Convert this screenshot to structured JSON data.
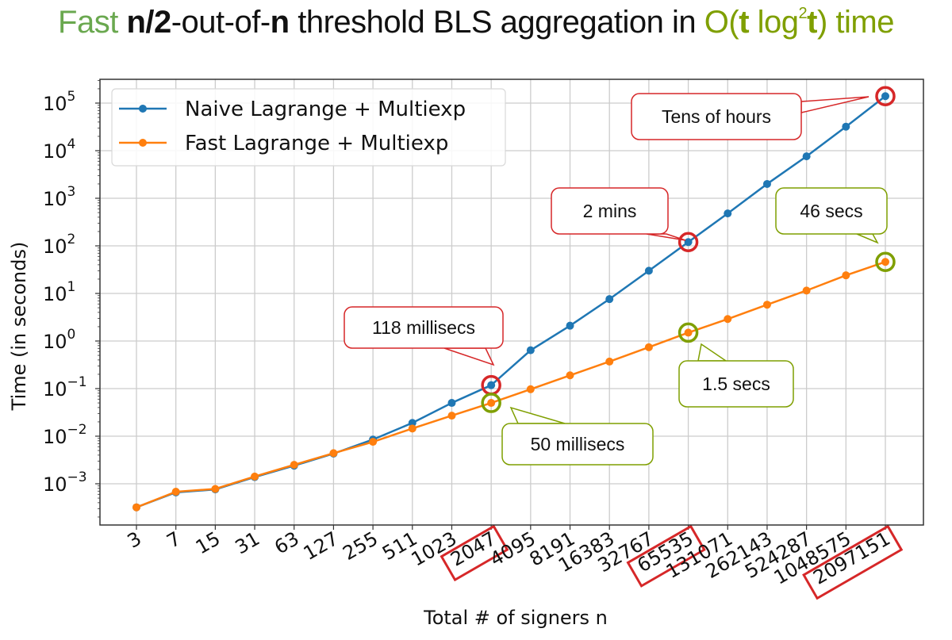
{
  "title": {
    "part1": "Fast",
    "part2": "n/2",
    "part3": "-out-of-",
    "part4": "n",
    "part5": " threshold BLS aggregation in ",
    "part6": "O(",
    "part7": "t",
    "part8": " log",
    "part9": "2",
    "part10": "t",
    "part11": ") time"
  },
  "colors": {
    "naive": "#1f77b4",
    "fast": "#ff7f0e",
    "red_highlight": "#d62728",
    "green_highlight": "#7f9f00",
    "grid": "#cccccc"
  },
  "chart_data": {
    "type": "line",
    "xlabel": "Total # of signers n",
    "ylabel": "Time (in seconds)",
    "yscale": "log",
    "ylim": [
      0.00012,
      300000
    ],
    "grid": true,
    "legend_position": "top-left",
    "categories": [
      "3",
      "7",
      "15",
      "31",
      "63",
      "127",
      "255",
      "511",
      "1023",
      "2047",
      "4095",
      "8191",
      "16383",
      "32767",
      "65535",
      "131071",
      "262143",
      "524287",
      "1048575",
      "2097151"
    ],
    "highlighted_categories": [
      "2047",
      "65535",
      "2097151"
    ],
    "yticks": [
      {
        "exp": "5",
        "value": 100000
      },
      {
        "exp": "4",
        "value": 10000
      },
      {
        "exp": "3",
        "value": 1000
      },
      {
        "exp": "2",
        "value": 100
      },
      {
        "exp": "1",
        "value": 10
      },
      {
        "exp": "0",
        "value": 1
      },
      {
        "exp": "−1",
        "value": 0.1
      },
      {
        "exp": "−2",
        "value": 0.01
      },
      {
        "exp": "−3",
        "value": 0.001
      }
    ],
    "series": [
      {
        "name": "Naive Lagrange + Multiexp",
        "values": [
          0.00032,
          0.00066,
          0.00076,
          0.00138,
          0.0024,
          0.0043,
          0.0085,
          0.019,
          0.05,
          0.118,
          0.64,
          2.1,
          7.6,
          30,
          120,
          480,
          2000,
          7600,
          32000,
          140000
        ]
      },
      {
        "name": "Fast Lagrange + Multiexp",
        "values": [
          0.00032,
          0.00068,
          0.00078,
          0.00142,
          0.0025,
          0.0044,
          0.0076,
          0.0145,
          0.027,
          0.05,
          0.097,
          0.19,
          0.37,
          0.74,
          1.5,
          2.9,
          5.8,
          11.5,
          24,
          46
        ]
      }
    ],
    "annotations": [
      {
        "text": "118 millisecs",
        "series": 0,
        "category": "2047",
        "style": "red"
      },
      {
        "text": "2 mins",
        "series": 0,
        "category": "65535",
        "style": "red"
      },
      {
        "text": "Tens of hours",
        "series": 0,
        "category": "2097151",
        "style": "red"
      },
      {
        "text": "50 millisecs",
        "series": 1,
        "category": "2047",
        "style": "green"
      },
      {
        "text": "1.5 secs",
        "series": 1,
        "category": "65535",
        "style": "green"
      },
      {
        "text": "46 secs",
        "series": 1,
        "category": "2097151",
        "style": "green"
      }
    ]
  }
}
